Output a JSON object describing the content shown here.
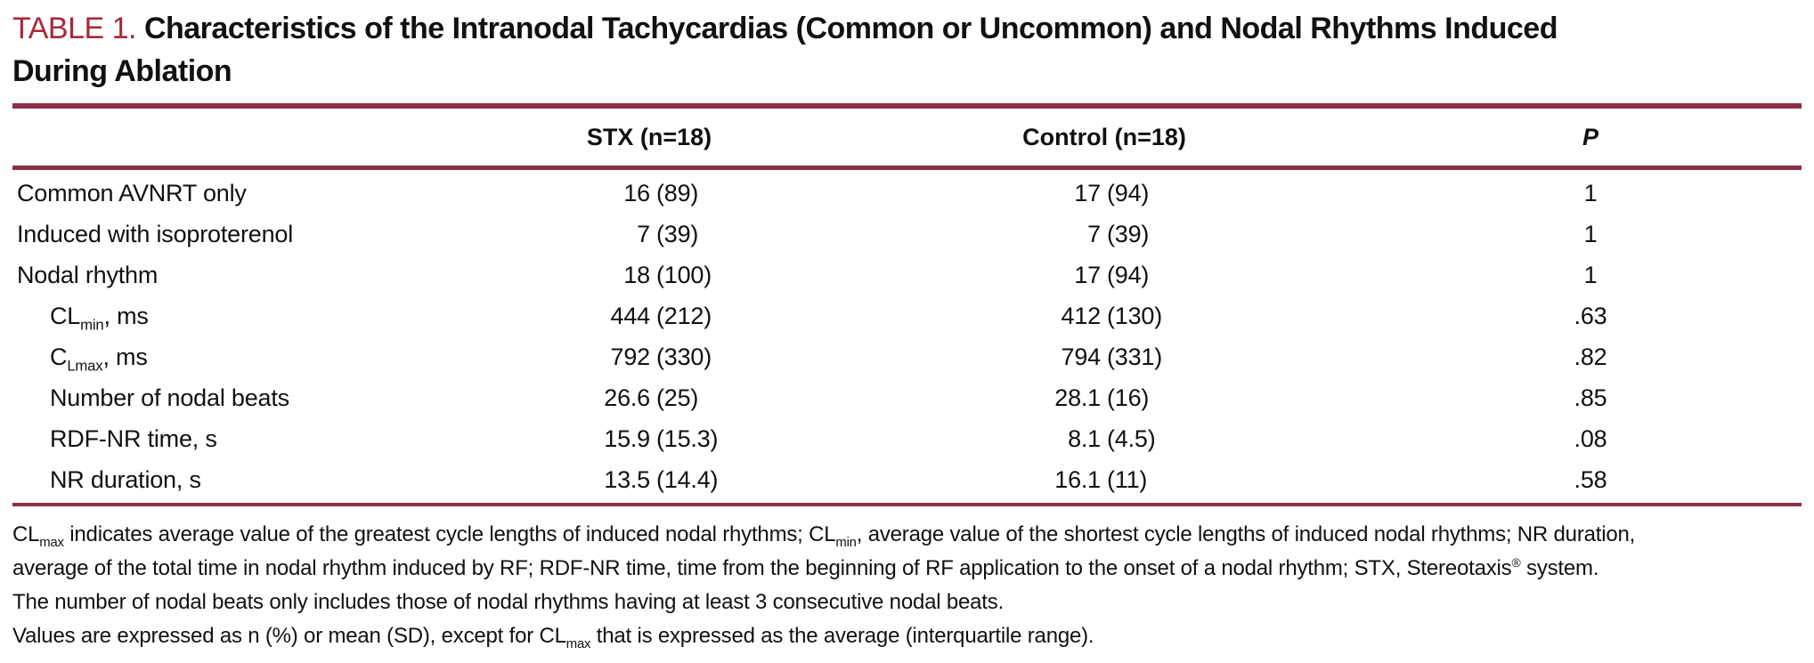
{
  "colors": {
    "accent_red": "#A52A3B",
    "rule_maroon": "#8C2F47",
    "text_black": "#111111"
  },
  "title": {
    "label": "TABLE 1.",
    "line1": "Characteristics of the Intranodal Tachycardias (Common or Uncommon) and Nodal Rhythms Induced",
    "line2": "During Ablation"
  },
  "table": {
    "col_stx": "STX (n=18)",
    "col_control": "Control (n=18)",
    "col_p": "P",
    "rows": [
      {
        "label_pre": "Common AVNRT only",
        "label_sub": "",
        "label_post": "",
        "stx_num": "16",
        "stx_paren": "(89)",
        "control_num": "17",
        "control_paren": "(94)",
        "p": "1"
      },
      {
        "label_pre": "Induced with isoproterenol",
        "label_sub": "",
        "label_post": "",
        "stx_num": "7",
        "stx_paren": "(39)",
        "control_num": "7",
        "control_paren": "(39)",
        "p": "1"
      },
      {
        "label_pre": "Nodal rhythm",
        "label_sub": "",
        "label_post": "",
        "stx_num": "18",
        "stx_paren": "(100)",
        "control_num": "17",
        "control_paren": "(94)",
        "p": "1"
      },
      {
        "label_pre": "CL",
        "label_sub": "min",
        "label_post": ", ms",
        "stx_num": "444",
        "stx_paren": "(212)",
        "control_num": "412",
        "control_paren": "(130)",
        "p": ".63"
      },
      {
        "label_pre": "C",
        "label_sub": "Lmax",
        "label_post": ", ms",
        "stx_num": "792",
        "stx_paren": "(330)",
        "control_num": "794",
        "control_paren": "(331)",
        "p": ".82"
      },
      {
        "label_pre": "Number of nodal beats",
        "label_sub": "",
        "label_post": "",
        "stx_num": "26.6",
        "stx_paren": "(25)",
        "control_num": "28.1",
        "control_paren": "(16)",
        "p": ".85"
      },
      {
        "label_pre": "RDF-NR time, s",
        "label_sub": "",
        "label_post": "",
        "stx_num": "15.9",
        "stx_paren": "(15.3)",
        "control_num": "8.1",
        "control_paren": "(4.5)",
        "p": ".08"
      },
      {
        "label_pre": "NR duration, s",
        "label_sub": "",
        "label_post": "",
        "stx_num": "13.5",
        "stx_paren": "(14.4)",
        "control_num": "16.1",
        "control_paren": "(11)",
        "p": ".58"
      }
    ]
  },
  "footnotes": {
    "line1": {
      "a": "CL",
      "a_sub": "max",
      "b": " indicates average value of the greatest cycle lengths of induced nodal rhythms; CL",
      "b_sub": "min",
      "c": ", average value of the shortest cycle lengths of induced nodal rhythms; NR duration,"
    },
    "line2": {
      "a": "average of the total time in nodal rhythm induced by RF; RDF-NR time, time from the beginning of RF application to the onset of a nodal rhythm; STX, Stereotaxis",
      "a_sup": "®",
      "b": " system."
    },
    "line3": "The number of nodal beats only includes those of nodal rhythms having at least 3 consecutive nodal beats.",
    "line4": {
      "a": "Values are expressed as n (%) or mean (SD), except for CL",
      "a_sub": "max",
      "b": " that is expressed as the average (interquartile range)."
    }
  }
}
